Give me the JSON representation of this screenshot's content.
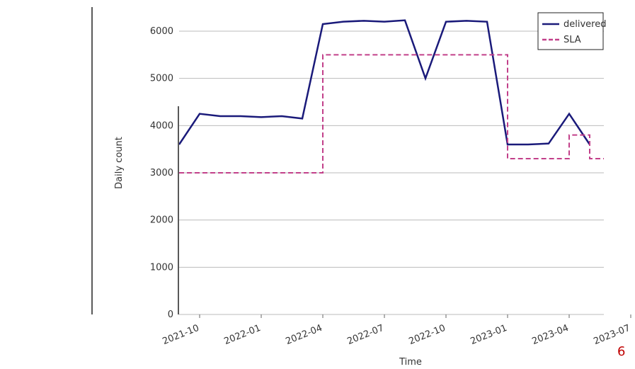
{
  "chart_data": {
    "type": "line",
    "x_label": "Time",
    "y_label": "Daily count",
    "x": [
      "2021-09",
      "2021-10",
      "2021-11",
      "2021-12",
      "2022-01",
      "2022-02",
      "2022-03",
      "2022-04",
      "2022-05",
      "2022-06",
      "2022-07",
      "2022-08",
      "2022-09",
      "2022-10",
      "2022-11",
      "2022-12",
      "2023-01",
      "2023-02",
      "2023-03",
      "2023-04",
      "2023-05"
    ],
    "series": [
      {
        "name": "delivered",
        "color": "#1a1a7a",
        "dash": false,
        "values": [
          3600,
          4250,
          4200,
          4200,
          4180,
          4200,
          4150,
          6150,
          6200,
          6220,
          6200,
          6230,
          5000,
          6200,
          6220,
          6200,
          3600,
          3600,
          3620,
          4250,
          3600
        ]
      },
      {
        "name": "SLA",
        "color": "#c2408a",
        "dash": true,
        "step": true,
        "values": [
          3000,
          3000,
          3000,
          3000,
          3000,
          3000,
          3000,
          5500,
          5500,
          5500,
          5500,
          5500,
          5500,
          5500,
          5500,
          5500,
          3300,
          3300,
          3300,
          3800,
          3300
        ]
      }
    ],
    "xlim": [
      "2021-09",
      "2023-07"
    ],
    "xticks": [
      "2021-10",
      "2022-01",
      "2022-04",
      "2022-07",
      "2022-10",
      "2023-01",
      "2023-04",
      "2023-07"
    ],
    "ylim": [
      0,
      6000
    ],
    "yticks": [
      0,
      1000,
      2000,
      3000,
      4000,
      5000,
      6000
    ],
    "grid": true,
    "legend": "upper right"
  },
  "page_number": "6"
}
